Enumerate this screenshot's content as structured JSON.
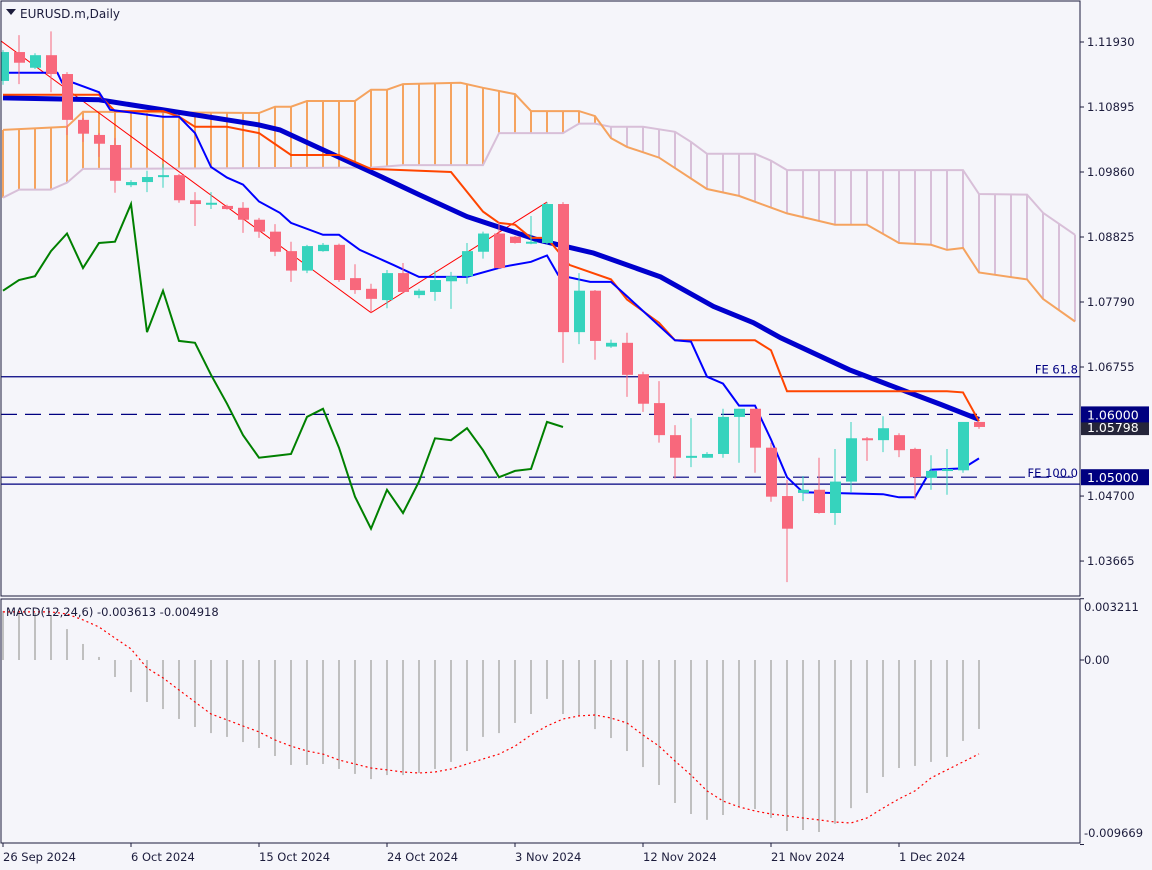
{
  "header": {
    "title": "EURUSD.m,Daily"
  },
  "colors": {
    "background": "#f5f5fa",
    "frame": "#1c1c3c",
    "bull": "#36d3bd",
    "bear": "#f8687c",
    "span_a": "#f5a35f",
    "span_b": "#d8bfd8",
    "ma": "#0000cd",
    "kijun": "#ff4500",
    "tenkan": "#0000ff",
    "chikou": "#008000",
    "zigzag": "#ff0000",
    "level_line": "#000080",
    "macd_hist": "#c0c0c0",
    "macd_signal": "#ff0000",
    "price_box": "#000080",
    "current_box": "#25253a"
  },
  "chart_data": [
    {
      "type": "candlestick",
      "symbol": "EURUSD.m",
      "timeframe": "Daily",
      "ylim": [
        1.0333,
        1.1225
      ],
      "y_ticks": [
        "1.11930",
        "1.10895",
        "1.09860",
        "1.08825",
        "1.07790",
        "1.06755",
        "1.04700",
        "1.03665"
      ],
      "y_tick_values": [
        1.1193,
        1.10895,
        1.0986,
        1.08825,
        1.0779,
        1.06755,
        1.047,
        1.03665
      ],
      "x_labels": [
        {
          "bar": 0,
          "text": "26 Sep 2024"
        },
        {
          "bar": 8,
          "text": "6 Oct 2024"
        },
        {
          "bar": 16,
          "text": "15 Oct 2024"
        },
        {
          "bar": 24,
          "text": "24 Oct 2024"
        },
        {
          "bar": 32,
          "text": "3 Nov 2024"
        },
        {
          "bar": 40,
          "text": "12 Nov 2024"
        },
        {
          "bar": 48,
          "text": "21 Nov 2024"
        },
        {
          "bar": 56,
          "text": "1 Dec 2024"
        }
      ],
      "ohlc": [
        [
          1.1131,
          1.118,
          1.1125,
          1.1177
        ],
        [
          1.1177,
          1.1204,
          1.1126,
          1.116
        ],
        [
          1.1152,
          1.1175,
          1.115,
          1.1172
        ],
        [
          1.1172,
          1.121,
          1.1113,
          1.1142
        ],
        [
          1.1142,
          1.1145,
          1.1045,
          1.1069
        ],
        [
          1.1069,
          1.1072,
          1.1034,
          1.1047
        ],
        [
          1.1045,
          1.1048,
          1.101,
          1.1031
        ],
        [
          1.1029,
          1.104,
          1.0953,
          1.0972
        ],
        [
          1.0965,
          1.0973,
          1.0962,
          1.097
        ],
        [
          1.097,
          1.0988,
          1.0954,
          1.0978
        ],
        [
          1.098,
          1.0999,
          1.0961,
          1.0981
        ],
        [
          1.0981,
          1.0983,
          1.0937,
          1.0941
        ],
        [
          1.0941,
          1.0954,
          1.09,
          1.0935
        ],
        [
          1.0935,
          1.0954,
          1.0927,
          1.0937
        ],
        [
          1.0932,
          1.0934,
          1.0926,
          1.0927
        ],
        [
          1.0929,
          1.0938,
          1.0889,
          1.091
        ],
        [
          1.091,
          1.0913,
          1.0881,
          1.0891
        ],
        [
          1.0891,
          1.0903,
          1.0852,
          1.0859
        ],
        [
          1.086,
          1.0875,
          1.0811,
          1.0829
        ],
        [
          1.0829,
          1.087,
          1.0825,
          1.0868
        ],
        [
          1.086,
          1.0873,
          1.0859,
          1.087
        ],
        [
          1.087,
          1.0872,
          1.0811,
          1.0814
        ],
        [
          1.0817,
          1.0839,
          1.0792,
          1.0798
        ],
        [
          1.08,
          1.0808,
          1.0762,
          1.0784
        ],
        [
          1.0782,
          1.083,
          1.0769,
          1.0825
        ],
        [
          1.0825,
          1.0841,
          1.0793,
          1.0795
        ],
        [
          1.079,
          1.08,
          1.0785,
          1.0797
        ],
        [
          1.0795,
          1.0829,
          1.0781,
          1.0814
        ],
        [
          1.0812,
          1.0827,
          1.0768,
          1.082
        ],
        [
          1.082,
          1.0873,
          1.0808,
          1.086
        ],
        [
          1.0859,
          1.0891,
          1.0848,
          1.0888
        ],
        [
          1.0888,
          1.0907,
          1.0832,
          1.0833
        ],
        [
          1.0883,
          1.0884,
          1.0872,
          1.0873
        ],
        [
          1.0872,
          1.0916,
          1.0871,
          1.0875
        ],
        [
          1.0873,
          1.0938,
          1.0871,
          1.0935
        ],
        [
          1.0935,
          1.0938,
          1.0682,
          1.0731
        ],
        [
          1.0731,
          1.0825,
          1.0712,
          1.0797
        ],
        [
          1.0797,
          1.0798,
          1.0687,
          1.0717
        ],
        [
          1.0708,
          1.0719,
          1.0706,
          1.0714
        ],
        [
          1.0714,
          1.073,
          1.0628,
          1.0663
        ],
        [
          1.0664,
          1.0668,
          1.0604,
          1.0617
        ],
        [
          1.0618,
          1.0653,
          1.0555,
          1.0567
        ],
        [
          1.0567,
          1.0583,
          1.0498,
          1.0531
        ],
        [
          1.0531,
          1.0594,
          1.0516,
          1.0534
        ],
        [
          1.0531,
          1.054,
          1.0531,
          1.0537
        ],
        [
          1.0537,
          1.0609,
          1.0531,
          1.0596
        ],
        [
          1.0596,
          1.0609,
          1.0523,
          1.0609
        ],
        [
          1.0609,
          1.0609,
          1.0507,
          1.0547
        ],
        [
          1.0547,
          1.0555,
          1.0461,
          1.0469
        ],
        [
          1.047,
          1.0496,
          1.0333,
          1.0418
        ],
        [
          1.0475,
          1.0502,
          1.0462,
          1.048
        ],
        [
          1.048,
          1.0531,
          1.0442,
          1.0443
        ],
        [
          1.0443,
          1.0545,
          1.0424,
          1.0493
        ],
        [
          1.0493,
          1.0588,
          1.0475,
          1.0562
        ],
        [
          1.0562,
          1.0564,
          1.0526,
          1.0559
        ],
        [
          1.0559,
          1.0597,
          1.054,
          1.0578
        ],
        [
          1.0567,
          1.057,
          1.0532,
          1.0543
        ],
        [
          1.0545,
          1.0547,
          1.0464,
          1.05
        ],
        [
          1.0499,
          1.0535,
          1.048,
          1.051
        ],
        [
          1.051,
          1.0545,
          1.0472,
          1.0513
        ],
        [
          1.0511,
          1.0588,
          1.0507,
          1.0588
        ],
        [
          1.0588,
          1.0588,
          1.0577,
          1.058
        ]
      ],
      "moving_average": [
        [
          0,
          1.1104
        ],
        [
          6,
          1.1101
        ],
        [
          16,
          1.1061
        ],
        [
          17.3,
          1.1053
        ],
        [
          22.75,
          1.0989
        ],
        [
          26,
          1.095
        ],
        [
          29,
          1.0915
        ],
        [
          33.4,
          1.0878
        ],
        [
          36.9,
          1.0857
        ],
        [
          41.1,
          1.0819
        ],
        [
          44.4,
          1.0772
        ],
        [
          46.9,
          1.0746
        ],
        [
          48.6,
          1.0722
        ],
        [
          52.9,
          1.0671
        ],
        [
          56.1,
          1.064
        ],
        [
          58.6,
          1.0616
        ],
        [
          61,
          1.0592
        ]
      ],
      "kijun": [
        [
          0,
          1.1109
        ],
        [
          6,
          1.1109
        ],
        [
          7,
          1.1083
        ],
        [
          10,
          1.1083
        ],
        [
          11,
          1.1074
        ],
        [
          12,
          1.1058
        ],
        [
          14,
          1.1058
        ],
        [
          16,
          1.1048
        ],
        [
          18,
          1.1013
        ],
        [
          21,
          1.1013
        ],
        [
          23,
          1.0991
        ],
        [
          28,
          1.0986
        ],
        [
          30,
          1.0923
        ],
        [
          31,
          1.0905
        ],
        [
          32,
          1.0902
        ],
        [
          33,
          1.0881
        ],
        [
          34,
          1.0881
        ],
        [
          35.4,
          1.0838
        ],
        [
          38,
          1.0815
        ],
        [
          39,
          1.0783
        ],
        [
          41,
          1.0746
        ],
        [
          42,
          1.0718
        ],
        [
          47,
          1.0718
        ],
        [
          48,
          1.0702
        ],
        [
          49,
          1.0637
        ],
        [
          59,
          1.0637
        ],
        [
          60,
          1.0635
        ],
        [
          61,
          1.0589
        ]
      ],
      "tenkan": [
        [
          0,
          1.1144
        ],
        [
          3.4,
          1.1144
        ],
        [
          3.7,
          1.1128
        ],
        [
          4.4,
          1.1128
        ],
        [
          6,
          1.1113
        ],
        [
          6.7,
          1.1085
        ],
        [
          10,
          1.1074
        ],
        [
          11,
          1.1074
        ],
        [
          12,
          1.1048
        ],
        [
          13,
          1.0994
        ],
        [
          14,
          1.0977
        ],
        [
          15,
          1.0966
        ],
        [
          16,
          1.0939
        ],
        [
          17.3,
          1.0921
        ],
        [
          18,
          1.0905
        ],
        [
          20,
          1.0886
        ],
        [
          21,
          1.0886
        ],
        [
          22.3,
          1.0862
        ],
        [
          24.4,
          1.0838
        ],
        [
          26,
          1.0819
        ],
        [
          29,
          1.0819
        ],
        [
          31.25,
          1.0835
        ],
        [
          33,
          1.0843
        ],
        [
          34,
          1.0853
        ],
        [
          34.7,
          1.0822
        ],
        [
          36.7,
          1.0811
        ],
        [
          38,
          1.0811
        ],
        [
          39,
          1.0788
        ],
        [
          42,
          1.0718
        ],
        [
          43,
          1.0716
        ],
        [
          44,
          1.066
        ],
        [
          45,
          1.0649
        ],
        [
          46,
          1.0614
        ],
        [
          47,
          1.0614
        ],
        [
          48,
          1.056
        ],
        [
          49,
          1.05
        ],
        [
          50,
          1.0476
        ],
        [
          55,
          1.0473
        ],
        [
          56,
          1.0468
        ],
        [
          57,
          1.0468
        ],
        [
          58,
          1.0512
        ],
        [
          60,
          1.0514
        ],
        [
          61,
          1.053
        ]
      ],
      "span_a": [
        [
          0,
          1.1053
        ],
        [
          4,
          1.1058
        ],
        [
          5,
          1.1082
        ],
        [
          16,
          1.108
        ],
        [
          17,
          1.109
        ],
        [
          18,
          1.109
        ],
        [
          19,
          1.1099
        ],
        [
          22,
          1.1099
        ],
        [
          23,
          1.1117
        ],
        [
          24,
          1.1117
        ],
        [
          25,
          1.1126
        ],
        [
          28.6,
          1.1128
        ],
        [
          30,
          1.112
        ],
        [
          32,
          1.111
        ],
        [
          33,
          1.1083
        ],
        [
          36,
          1.1083
        ],
        [
          37,
          1.1075
        ],
        [
          38,
          1.104
        ],
        [
          39,
          1.1026
        ],
        [
          41,
          1.1009
        ],
        [
          44,
          1.0959
        ],
        [
          46,
          1.0948
        ],
        [
          49,
          1.092
        ],
        [
          52,
          1.0902
        ],
        [
          54,
          1.0902
        ],
        [
          56,
          1.0873
        ],
        [
          58,
          1.087
        ],
        [
          59,
          1.0862
        ],
        [
          60,
          1.0865
        ],
        [
          61,
          1.0826
        ],
        [
          64,
          1.0815
        ],
        [
          65,
          1.0784
        ],
        [
          67,
          1.0748
        ]
      ],
      "span_b": [
        [
          0,
          1.0945
        ],
        [
          1,
          1.0958
        ],
        [
          3,
          1.0958
        ],
        [
          4,
          1.0969
        ],
        [
          5,
          1.0991
        ],
        [
          23,
          1.0993
        ],
        [
          25,
          1.0997
        ],
        [
          30,
          1.0997
        ],
        [
          31,
          1.1048
        ],
        [
          35,
          1.1048
        ],
        [
          36,
          1.1063
        ],
        [
          37,
          1.1063
        ],
        [
          38,
          1.1058
        ],
        [
          40,
          1.1058
        ],
        [
          42,
          1.105
        ],
        [
          43,
          1.1034
        ],
        [
          44,
          1.1015
        ],
        [
          47,
          1.1015
        ],
        [
          48,
          1.1004
        ],
        [
          49,
          1.0989
        ],
        [
          60,
          1.0989
        ],
        [
          61,
          1.0951
        ],
        [
          64,
          1.095
        ],
        [
          65,
          1.0921
        ],
        [
          67,
          1.0886
        ]
      ],
      "chikou_shift": 26,
      "zigzag": [
        [
          -0.2,
          1.1196
        ],
        [
          23,
          1.0762
        ],
        [
          34,
          1.0938
        ]
      ],
      "levels": [
        {
          "price": 1.066,
          "style": "solid",
          "label": "FE 61.8"
        },
        {
          "price": 1.0489,
          "style": "solid",
          "label": "FE 100.0"
        },
        {
          "price": 1.06,
          "style": "dashed",
          "label": ""
        },
        {
          "price": 1.05,
          "style": "dashed",
          "label": ""
        }
      ],
      "price_boxes": [
        {
          "price": 1.05798,
          "text": "1.05798",
          "kind": "current"
        },
        {
          "price": 1.06,
          "text": "1.06000",
          "kind": "level"
        },
        {
          "price": 1.05,
          "text": "1.05000",
          "kind": "level"
        }
      ]
    },
    {
      "type": "bar+line",
      "title": "MACD(12,24,6) -0.003613 -0.004918",
      "ylim": [
        -0.009669,
        0.003211
      ],
      "y_ticks": [
        "0.003211",
        "0.00",
        "-0.009669"
      ],
      "y_tick_values": [
        0.003211,
        0,
        -0.009669
      ],
      "histogram": [
        0.00257,
        0.00246,
        0.00246,
        0.00236,
        0.00162,
        0.00084,
        0.00016,
        -0.00089,
        -0.00168,
        -0.0022,
        -0.00257,
        -0.00309,
        -0.00351,
        -0.00383,
        -0.00403,
        -0.0043,
        -0.00461,
        -0.00503,
        -0.0055,
        -0.0055,
        -0.00545,
        -0.00571,
        -0.00597,
        -0.00624,
        -0.00603,
        -0.00603,
        -0.00592,
        -0.00571,
        -0.00534,
        -0.00477,
        -0.00403,
        -0.00383,
        -0.0033,
        -0.00283,
        -0.00204,
        -0.00283,
        -0.00293,
        -0.00362,
        -0.00409,
        -0.00477,
        -0.00561,
        -0.00655,
        -0.00749,
        -0.00807,
        -0.00838,
        -0.00812,
        -0.0077,
        -0.00781,
        -0.00828,
        -0.00896,
        -0.00891,
        -0.00901,
        -0.00859,
        -0.00776,
        -0.00697,
        -0.00613,
        -0.00566,
        -0.00555,
        -0.00534,
        -0.00508,
        -0.00424,
        -0.003613
      ],
      "signal": [
        0.00252,
        0.00252,
        0.00252,
        0.00252,
        0.00241,
        0.0021,
        0.00173,
        0.00115,
        0.00058,
        -0.00042,
        -0.00094,
        -0.00157,
        -0.0022,
        -0.00283,
        -0.00314,
        -0.00346,
        -0.00377,
        -0.00419,
        -0.00451,
        -0.00477,
        -0.00493,
        -0.00524,
        -0.00545,
        -0.00566,
        -0.00576,
        -0.00587,
        -0.00592,
        -0.00587,
        -0.00571,
        -0.00545,
        -0.00519,
        -0.00493,
        -0.00451,
        -0.00393,
        -0.00346,
        -0.00309,
        -0.00293,
        -0.00288,
        -0.00304,
        -0.0033,
        -0.00393,
        -0.00451,
        -0.00529,
        -0.00603,
        -0.00686,
        -0.00739,
        -0.0077,
        -0.00791,
        -0.00807,
        -0.00817,
        -0.00828,
        -0.00838,
        -0.00849,
        -0.00854,
        -0.00828,
        -0.00776,
        -0.00728,
        -0.00686,
        -0.00618,
        -0.00576,
        -0.00534,
        -0.004918
      ]
    }
  ]
}
